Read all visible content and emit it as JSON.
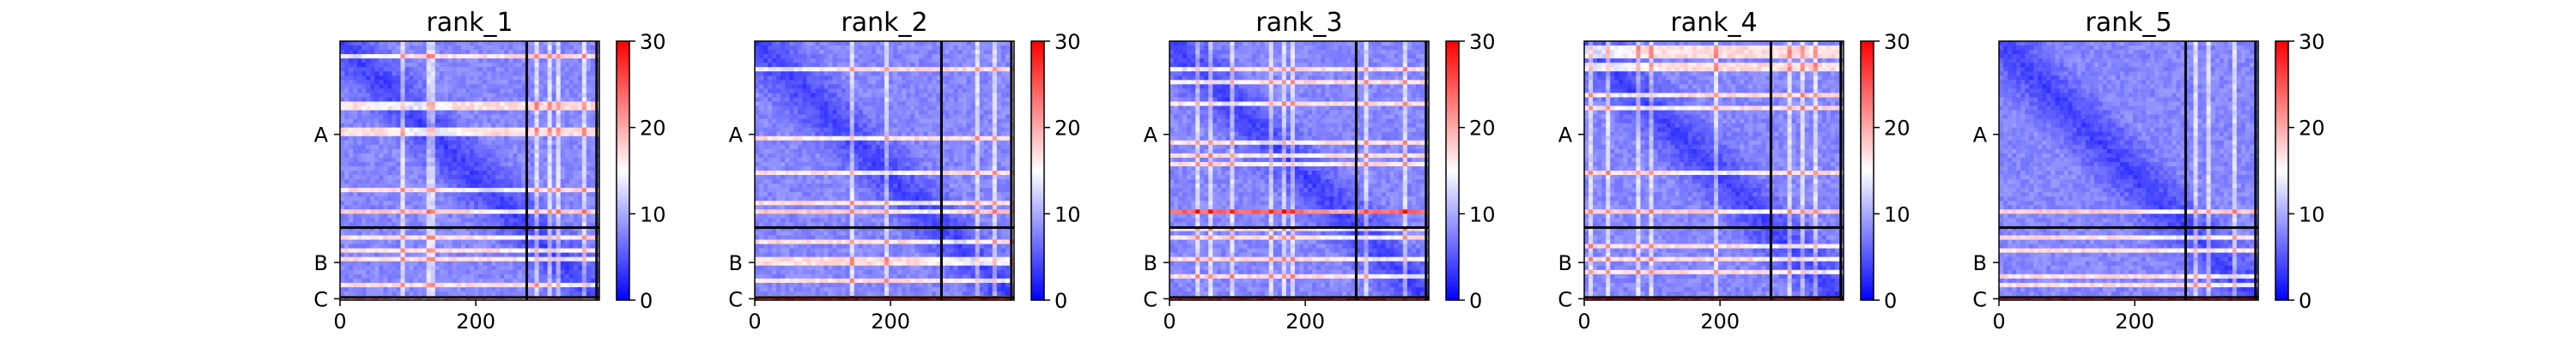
{
  "colorbar": {
    "colors": [
      "#0000ff",
      "#ffffff",
      "#ff0000"
    ],
    "min": 0,
    "max": 30,
    "ticks": [
      "0",
      "10",
      "20",
      "30"
    ]
  },
  "chart_data": [
    {
      "type": "heatmap",
      "title": "rank_1",
      "xlim": [
        0,
        382
      ],
      "x_ticks": [
        "0",
        "200"
      ],
      "chains": [
        {
          "label": "A",
          "start": 0,
          "end": 275
        },
        {
          "label": "B",
          "start": 275,
          "end": 378
        },
        {
          "label": "C",
          "start": 378,
          "end": 382
        }
      ],
      "value_range": [
        0,
        30
      ],
      "chain_c_band": "low"
    },
    {
      "type": "heatmap",
      "title": "rank_2",
      "xlim": [
        0,
        382
      ],
      "x_ticks": [
        "0",
        "200"
      ],
      "chains": [
        {
          "label": "A",
          "start": 0,
          "end": 275
        },
        {
          "label": "B",
          "start": 275,
          "end": 378
        },
        {
          "label": "C",
          "start": 378,
          "end": 382
        }
      ],
      "value_range": [
        0,
        30
      ],
      "chain_c_band": "high"
    },
    {
      "type": "heatmap",
      "title": "rank_3",
      "xlim": [
        0,
        382
      ],
      "x_ticks": [
        "0",
        "200"
      ],
      "chains": [
        {
          "label": "A",
          "start": 0,
          "end": 275
        },
        {
          "label": "B",
          "start": 275,
          "end": 378
        },
        {
          "label": "C",
          "start": 378,
          "end": 382
        }
      ],
      "value_range": [
        0,
        30
      ],
      "chain_c_band": "high"
    },
    {
      "type": "heatmap",
      "title": "rank_4",
      "xlim": [
        0,
        382
      ],
      "x_ticks": [
        "0",
        "200"
      ],
      "chains": [
        {
          "label": "A",
          "start": 0,
          "end": 275
        },
        {
          "label": "B",
          "start": 275,
          "end": 378
        },
        {
          "label": "C",
          "start": 378,
          "end": 382
        }
      ],
      "value_range": [
        0,
        30
      ],
      "chain_c_band": "high"
    },
    {
      "type": "heatmap",
      "title": "rank_5",
      "xlim": [
        0,
        382
      ],
      "x_ticks": [
        "0",
        "200"
      ],
      "chains": [
        {
          "label": "A",
          "start": 0,
          "end": 275
        },
        {
          "label": "B",
          "start": 275,
          "end": 378
        },
        {
          "label": "C",
          "start": 378,
          "end": 382
        }
      ],
      "value_range": [
        0,
        30
      ],
      "chain_c_band": "high"
    }
  ]
}
